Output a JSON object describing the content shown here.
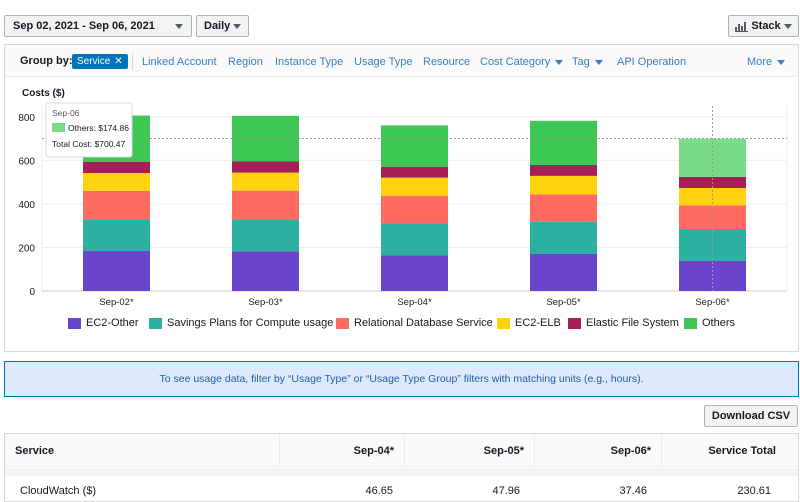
{
  "toolbar": {
    "date_range": "Sep 02, 2021 - Sep 06, 2021",
    "granularity": "Daily",
    "chart_style": "Stack"
  },
  "group_by": {
    "label": "Group by:",
    "selected": "Service",
    "items": [
      "Linked Account",
      "Region",
      "Instance Type",
      "Usage Type",
      "Resource",
      "Cost Category",
      "Tag",
      "API Operation"
    ],
    "more": "More"
  },
  "chart_data": {
    "type": "bar",
    "stacked": true,
    "ylabel": "Costs ($)",
    "ylim": [
      0,
      850
    ],
    "yticks": [
      0,
      200,
      400,
      600,
      800
    ],
    "categories": [
      "Sep-02*",
      "Sep-03*",
      "Sep-04*",
      "Sep-05*",
      "Sep-06*"
    ],
    "series": [
      {
        "name": "EC2-Other",
        "color": "#6b44cc",
        "values": [
          184,
          182,
          163,
          170,
          138
        ]
      },
      {
        "name": "Savings Plans for Compute usage",
        "color": "#2bb0a2",
        "values": [
          146,
          147,
          148,
          148,
          147
        ]
      },
      {
        "name": "Relational Database Service",
        "color": "#ff6b61",
        "values": [
          130,
          132,
          127,
          126,
          108
        ]
      },
      {
        "name": "EC2-ELB",
        "color": "#ffd30f",
        "values": [
          82,
          83,
          83,
          85,
          80
        ]
      },
      {
        "name": "Elastic File System",
        "color": "#a81e56",
        "values": [
          52,
          51,
          50,
          50,
          51
        ]
      },
      {
        "name": "Others",
        "color": "#3fc755",
        "values": [
          212,
          210,
          190,
          203,
          175
        ]
      }
    ],
    "highlight_category": "Sep-06*",
    "tooltip": {
      "title": "Sep-06",
      "series_line": "Others: $174.86",
      "total_line": "Total Cost: $700.47"
    },
    "crosshair_value": 700.47
  },
  "info_banner": "To see usage data, filter by “Usage Type” or “Usage Type Group” filters with matching units (e.g., hours).",
  "download_label": "Download CSV",
  "table": {
    "headers": [
      "Service",
      "Sep-04*",
      "Sep-05*",
      "Sep-06*",
      "Service Total"
    ],
    "rows": [
      [
        "CloudWatch ($)",
        "46.65",
        "47.96",
        "37.46",
        "230.61"
      ]
    ]
  },
  "icons": {
    "stack": "bar-chart-icon",
    "chip_close": "close-icon"
  }
}
